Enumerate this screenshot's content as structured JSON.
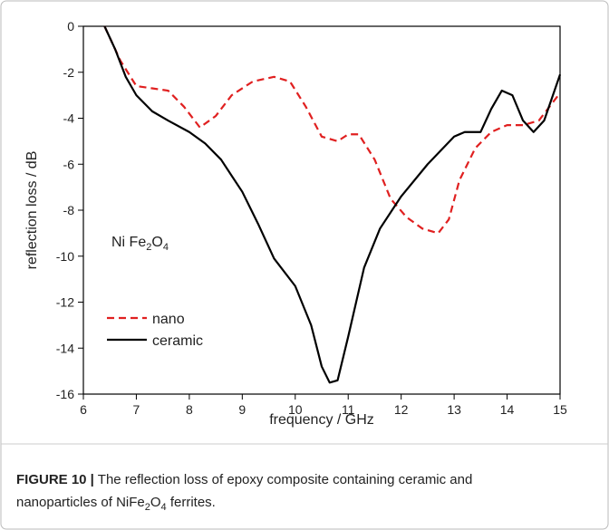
{
  "chart_data": {
    "type": "line",
    "xlabel": "frequency / GHz",
    "ylabel": "reflection loss / dB",
    "annotation": [
      "Ni Fe",
      "2",
      "O",
      "4"
    ],
    "xlim": [
      6,
      15
    ],
    "xticks": [
      6,
      7,
      8,
      9,
      10,
      11,
      12,
      13,
      14,
      15
    ],
    "ylim": [
      -16,
      0
    ],
    "yticks": [
      0,
      -2,
      -4,
      -6,
      -8,
      -10,
      -12,
      -14,
      -16
    ],
    "legend": "lower left",
    "series": [
      {
        "name": "nano",
        "color": "#e02020",
        "style": "dashed",
        "x": [
          6.4,
          6.7,
          7.0,
          7.3,
          7.6,
          7.9,
          8.2,
          8.5,
          8.8,
          9.2,
          9.6,
          9.9,
          10.2,
          10.5,
          10.8,
          11.0,
          11.2,
          11.5,
          11.8,
          12.1,
          12.4,
          12.7,
          12.9,
          13.1,
          13.4,
          13.7,
          14.0,
          14.3,
          14.6,
          15.0
        ],
        "values": [
          0,
          -1.5,
          -2.6,
          -2.7,
          -2.8,
          -3.5,
          -4.4,
          -3.9,
          -3.0,
          -2.4,
          -2.2,
          -2.4,
          -3.5,
          -4.8,
          -5.0,
          -4.7,
          -4.7,
          -5.8,
          -7.5,
          -8.3,
          -8.8,
          -9.0,
          -8.4,
          -6.7,
          -5.3,
          -4.6,
          -4.3,
          -4.3,
          -4.1,
          -2.9
        ]
      },
      {
        "name": "ceramic",
        "color": "#000000",
        "style": "solid",
        "x": [
          6.4,
          6.6,
          6.8,
          7.0,
          7.3,
          7.6,
          8.0,
          8.3,
          8.6,
          9.0,
          9.3,
          9.6,
          10.0,
          10.3,
          10.5,
          10.65,
          10.8,
          11.0,
          11.3,
          11.6,
          12.0,
          12.5,
          13.0,
          13.2,
          13.5,
          13.7,
          13.9,
          14.1,
          14.3,
          14.5,
          14.7,
          15.0
        ],
        "values": [
          0,
          -1.0,
          -2.2,
          -3.0,
          -3.7,
          -4.1,
          -4.6,
          -5.1,
          -5.8,
          -7.2,
          -8.6,
          -10.1,
          -11.3,
          -13.0,
          -14.8,
          -15.5,
          -15.4,
          -13.5,
          -10.5,
          -8.8,
          -7.4,
          -6.0,
          -4.8,
          -4.6,
          -4.6,
          -3.6,
          -2.8,
          -3.0,
          -4.1,
          -4.6,
          -4.1,
          -2.1
        ]
      }
    ]
  },
  "caption": {
    "label": "FIGURE 10 |",
    "line1": " The reflection loss of epoxy composite containing ceramic and",
    "line2": [
      "nanoparticles of NiFe",
      "2",
      "O",
      "4",
      " ferrites."
    ]
  }
}
